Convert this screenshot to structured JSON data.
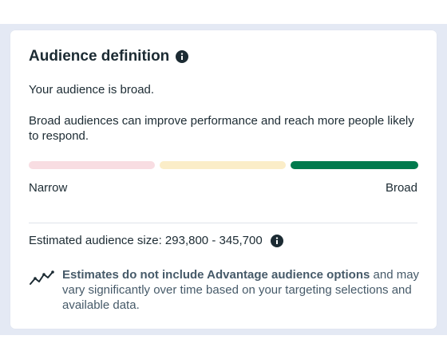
{
  "panel": {
    "title": "Audience definition",
    "status_text": "Your audience is broad.",
    "description": "Broad audiences can improve performance and reach more people likely to respond.",
    "meter": {
      "segments": [
        "narrow",
        "mid",
        "broad"
      ],
      "selected": "broad",
      "colors": {
        "narrow": "#f8dde2",
        "mid": "#fbedc8",
        "broad": "#007a4d"
      },
      "label_left": "Narrow",
      "label_right": "Broad"
    },
    "estimated_size": "Estimated audience size: 293,800 - 345,700",
    "note": {
      "bold_part": "Estimates do not include Advantage audience options",
      "rest": " and may vary significantly over time based on your targeting selections and available data.",
      "icon": "trend-line-icon"
    }
  }
}
